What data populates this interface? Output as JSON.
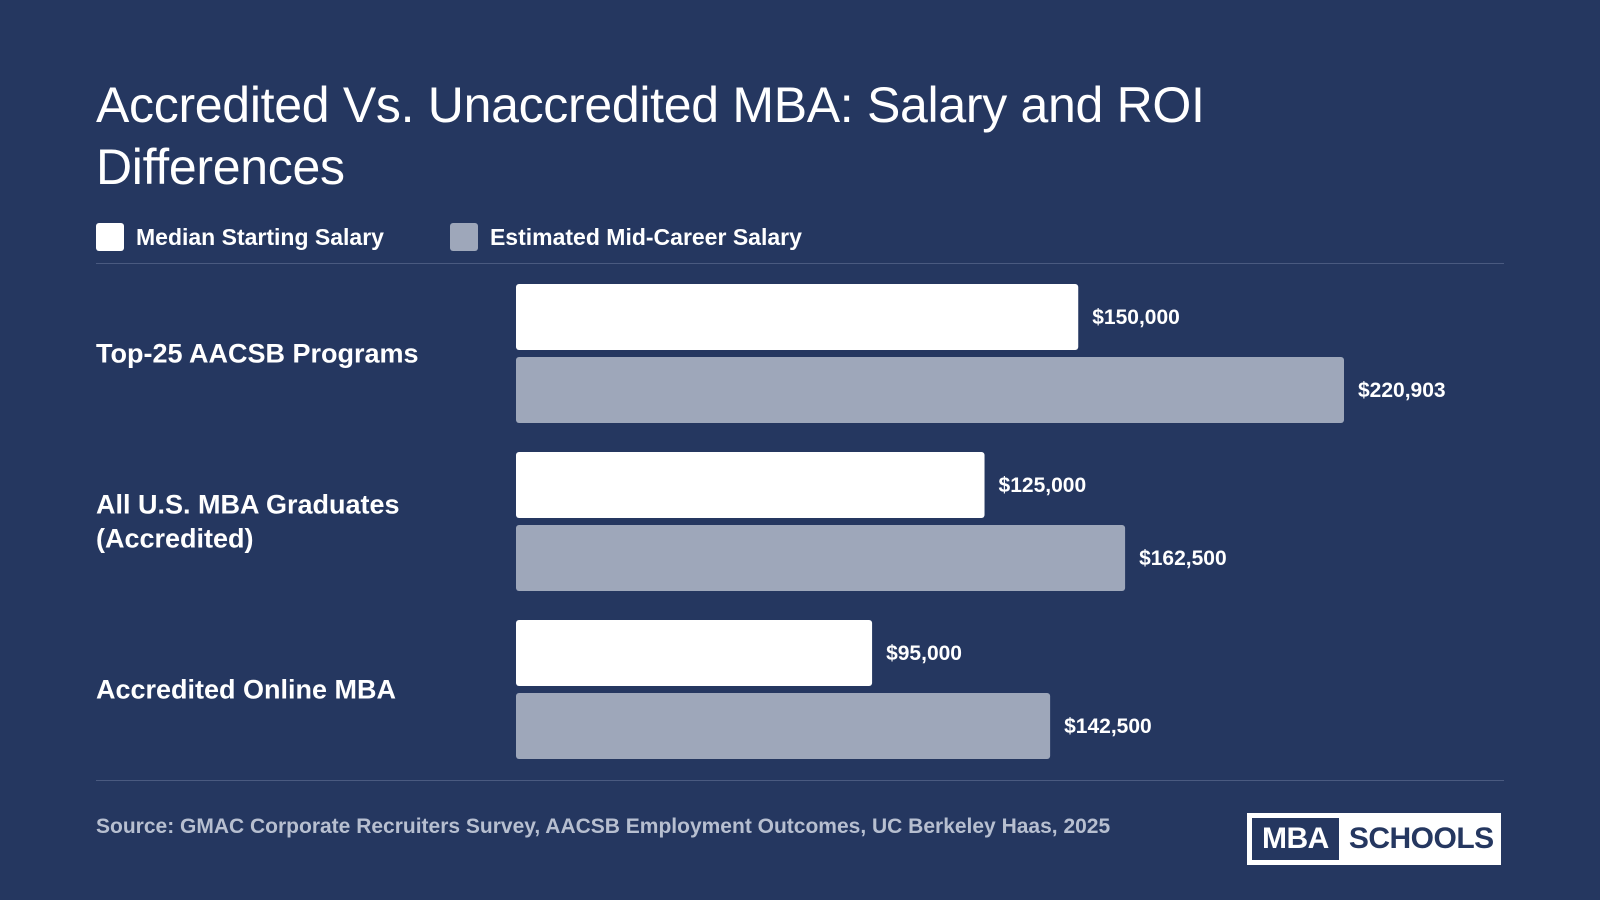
{
  "title": "Accredited Vs. Unaccredited MBA: Salary and ROI Differences",
  "legend": [
    {
      "label": "Median Starting Salary",
      "color": "#ffffff"
    },
    {
      "label": "Estimated Mid-Career Salary",
      "color": "#9ea7ba"
    }
  ],
  "chart_data": {
    "type": "bar",
    "orientation": "horizontal",
    "categories": [
      [
        "Top-25 AACSB Programs"
      ],
      [
        "All U.S. MBA Graduates",
        "(Accredited)"
      ],
      [
        "Accredited Online MBA"
      ]
    ],
    "series": [
      {
        "name": "Median Starting Salary",
        "color": "#ffffff",
        "values": [
          150000,
          125000,
          95000
        ],
        "labels": [
          "$150,000",
          "$125,000",
          "$95,000"
        ]
      },
      {
        "name": "Estimated Mid-Career Salary",
        "color": "#9ea7ba",
        "values": [
          220903,
          162500,
          142500
        ],
        "labels": [
          "$220,903",
          "$162,500",
          "$142,500"
        ]
      }
    ],
    "xlim": [
      0,
      220903
    ],
    "grid": false,
    "legend_position": "top-left"
  },
  "source": "Source: GMAC Corporate Recruiters Survey, AACSB Employment Outcomes, UC Berkeley Haas, 2025",
  "logo": {
    "left": "MBA",
    "right": "SCHOOLS"
  },
  "colors": {
    "background": "#253760",
    "rule": "#4a5a80",
    "source_text": "#b7bfd0"
  }
}
